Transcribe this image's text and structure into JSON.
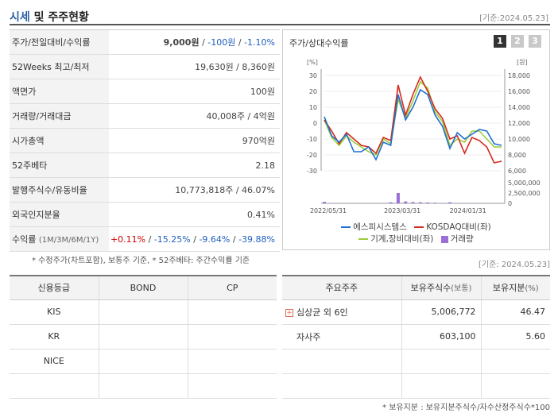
{
  "header": {
    "title_main": "시세",
    "title_rest": " 및 주주현황",
    "date": "[기준:2024.05.23]"
  },
  "quote": [
    {
      "label": "주가/전일대비/수익률",
      "price": "9,000원",
      "diff": "-100원",
      "rate": "-1.10%"
    },
    {
      "label": "52Weeks 최고/최저",
      "value": "19,630원 / 8,360원"
    },
    {
      "label": "액면가",
      "value": "100원"
    },
    {
      "label": "거래량/거래대금",
      "value": "40,008주 / 4억원"
    },
    {
      "label": "시가총액",
      "value": "970억원"
    },
    {
      "label": "52주베타",
      "value": "2.18"
    },
    {
      "label": "발행주식수/유동비율",
      "value": "10,773,818주 / 46.07%"
    },
    {
      "label": "외국인지분율",
      "value": "0.41%"
    },
    {
      "label": "수익률",
      "label_sub": "(1M/3M/6M/1Y)",
      "r1": "+0.11%",
      "r2": "-15.25%",
      "r3": "-9.64%",
      "r4": "-39.88%"
    }
  ],
  "quote_note": "* 수정주가(차트포함), 보통주 기준, * 52주베타: 주간수익률 기준",
  "chart_panel": {
    "title": "주가/상대수익률",
    "tabs": [
      "1",
      "2",
      "3"
    ],
    "active_tab": "1"
  },
  "chart_data": {
    "type": "line",
    "y_left_unit": "[%]",
    "y_right_unit": "[원]",
    "y_vol_unit": "[주]",
    "y_left_ticks": [
      "30",
      "20",
      "10",
      "0",
      "-10",
      "-20",
      "-30"
    ],
    "y_right_ticks": [
      "18,000",
      "16,000",
      "14,000",
      "12,000",
      "10,000",
      "8,000",
      "6,000"
    ],
    "y_vol_ticks": [
      "5,000,000",
      "2,500,000",
      "0"
    ],
    "x_ticks": [
      "2022/05/31",
      "2023/03/31",
      "2024/01/31"
    ],
    "ylim_left": [
      -30,
      30
    ],
    "ylim_right": [
      6000,
      18000
    ],
    "series": [
      {
        "name": "에스피시스템스",
        "color": "#1f6fd1",
        "values": [
          4,
          -8,
          -12,
          -7,
          -18,
          -18,
          -15,
          -23,
          -12,
          -14,
          18,
          2,
          10,
          21,
          18,
          5,
          -2,
          -16,
          -6,
          -10,
          -7,
          -4,
          -5,
          -13,
          -14
        ]
      },
      {
        "name": "KOSDAQ대비(좌)",
        "color": "#d42a1a",
        "values": [
          2,
          -5,
          -13,
          -6,
          -10,
          -14,
          -15,
          -19,
          -9,
          -11,
          24,
          5,
          18,
          29,
          20,
          9,
          3,
          -10,
          -8,
          -19,
          -9,
          -11,
          -15,
          -25,
          -24
        ]
      },
      {
        "name": "기계,장비대비(좌)",
        "color": "#9ccc3a",
        "values": [
          2,
          -9,
          -14,
          -8,
          -12,
          -15,
          -18,
          -20,
          -10,
          -13,
          15,
          3,
          14,
          26,
          22,
          7,
          1,
          -14,
          -10,
          -12,
          -5,
          -5,
          -10,
          -15,
          -15
        ]
      },
      {
        "name": "거래량",
        "color": "#9b6fd6",
        "values": [
          350000,
          50000,
          40000,
          60000,
          30000,
          30000,
          40000,
          20000,
          60000,
          250000,
          2500000,
          450000,
          300000,
          250000,
          200000,
          150000,
          100000,
          250000,
          60000,
          80000,
          40000,
          40000,
          30000,
          30000,
          20000
        ]
      }
    ]
  },
  "quote_date": "[기준: 2024.05.23]",
  "credit": {
    "headers": [
      "신용등급",
      "BOND",
      "CP"
    ],
    "rows": [
      [
        "KIS",
        "",
        ""
      ],
      [
        "KR",
        "",
        ""
      ],
      [
        "NICE",
        "",
        ""
      ],
      [
        "",
        "",
        ""
      ]
    ]
  },
  "shareholders": {
    "headers": [
      "주요주주",
      "보유주식수",
      "(보통)",
      "보유지분",
      "(%)"
    ],
    "rows": [
      {
        "name": "심상균 외 6인",
        "shares": "5,006,772",
        "pct": "46.47",
        "expand_icon": "plus-icon"
      },
      {
        "name": "자사주",
        "shares": "603,100",
        "pct": "5.60"
      },
      {
        "name": "",
        "shares": "",
        "pct": ""
      },
      {
        "name": "",
        "shares": "",
        "pct": ""
      }
    ]
  },
  "share_note": "* 보유지분 : 보유지분주식수/자수산정주식수*100"
}
